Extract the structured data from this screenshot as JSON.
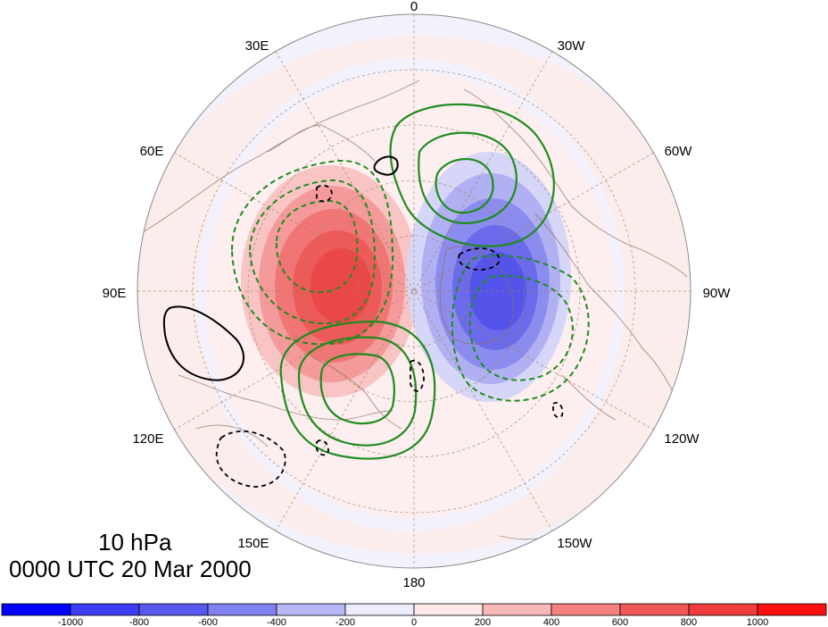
{
  "map": {
    "projection": "north-polar-stereographic",
    "longitude_labels": [
      "0",
      "30W",
      "60W",
      "90W",
      "120W",
      "150W",
      "180",
      "150E",
      "120E",
      "90E",
      "60E",
      "30E"
    ],
    "grid": true,
    "coastlines": true,
    "colors": {
      "negative": "#1a1aff",
      "positive": "#ff1a1a",
      "contour_positive": "#1e8c1e",
      "contour_negative_dashed": "#1e8c1e",
      "contour_zero": "#000000",
      "coast": "#8b6d5c",
      "grid": "#a08060"
    }
  },
  "titles": {
    "level": "10 hPa",
    "time": "0000 UTC 20 Mar 2000"
  },
  "colorbar": {
    "tick_labels": [
      "-1000",
      "-800",
      "-600",
      "-400",
      "-200",
      "0",
      "200",
      "400",
      "600",
      "800",
      "1000"
    ],
    "colors": [
      "#0000ff",
      "#3c3cf5",
      "#5858ee",
      "#8080f0",
      "#b8b8f6",
      "#ececfc",
      "#fdeaea",
      "#f8b8b8",
      "#f48080",
      "#f05858",
      "#f03c3c",
      "#ff1010"
    ]
  }
}
